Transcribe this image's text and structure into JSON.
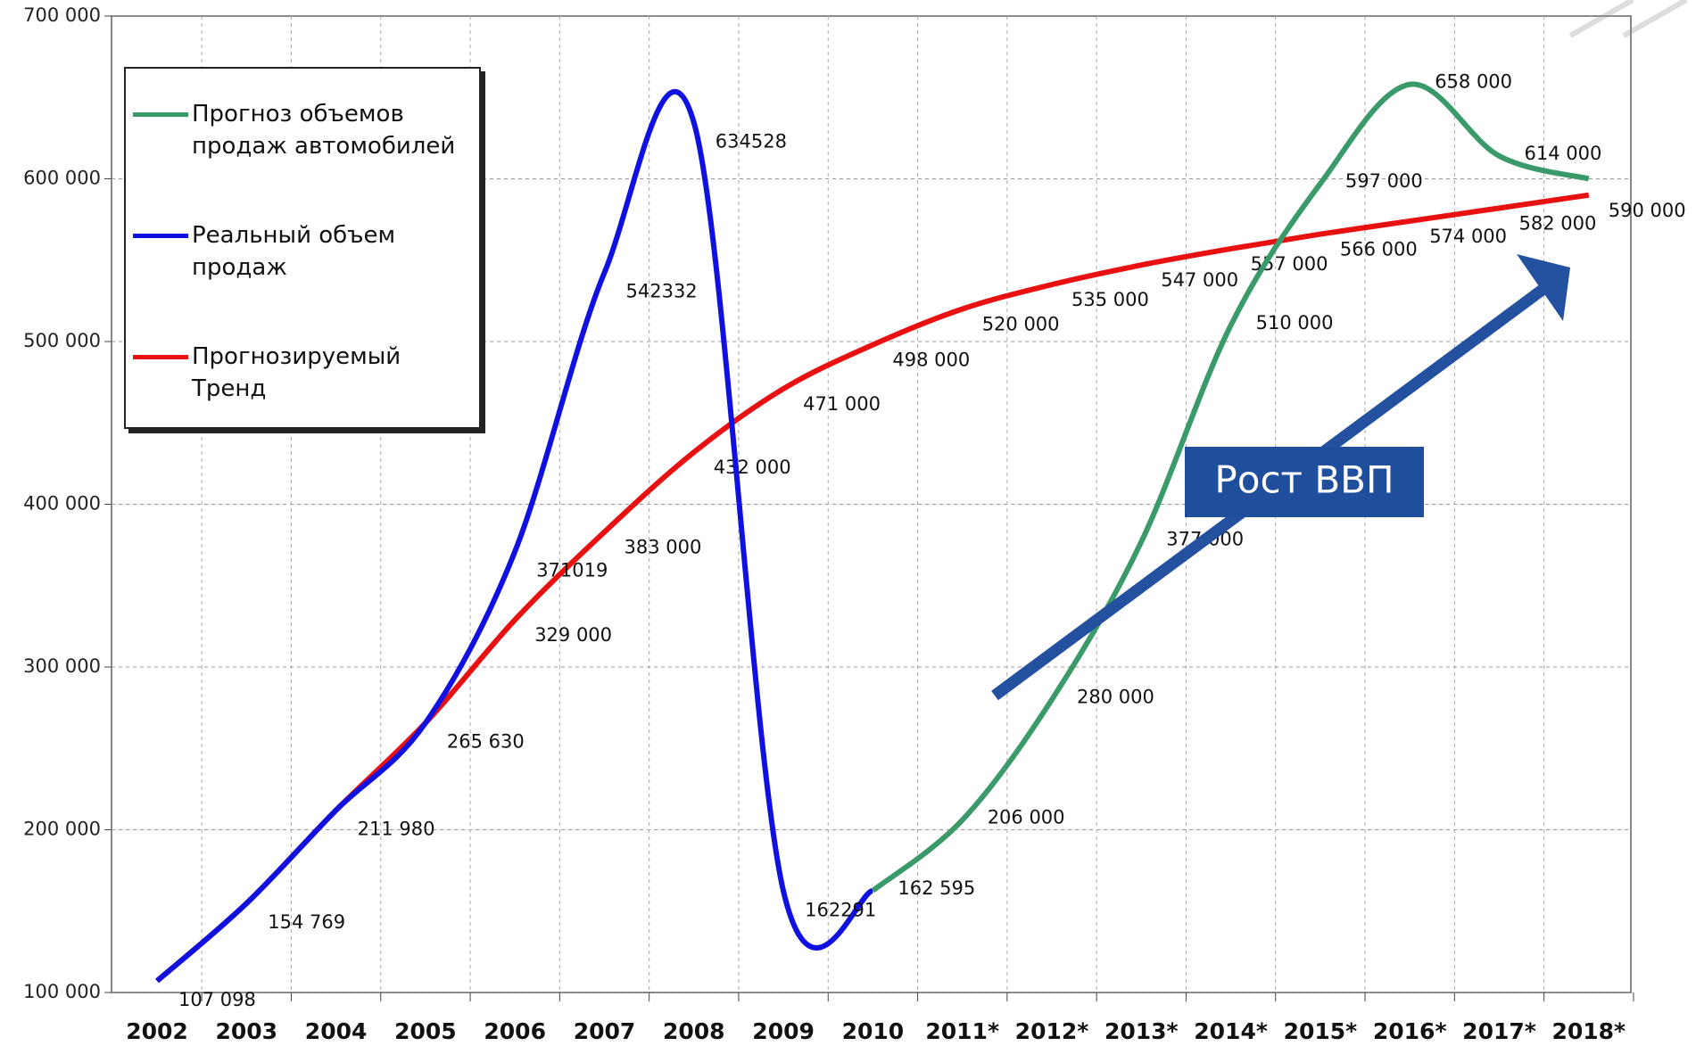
{
  "chart_data": {
    "type": "line",
    "categories": [
      "2002",
      "2003",
      "2004",
      "2005",
      "2006",
      "2007",
      "2008",
      "2009",
      "2010",
      "2011*",
      "2012*",
      "2013*",
      "2014*",
      "2015*",
      "2016*",
      "2017*",
      "2018*"
    ],
    "series": [
      {
        "name": "Прогноз объемов продаж автомобилей",
        "color": "#3a9a6a",
        "values": [
          null,
          null,
          null,
          null,
          null,
          null,
          null,
          null,
          162595,
          206000,
          280000,
          377000,
          510000,
          597000,
          658000,
          614000,
          600000
        ],
        "value_labels": [
          null,
          null,
          null,
          null,
          null,
          null,
          null,
          null,
          "162 595",
          "206 000",
          "280 000",
          "377 000",
          "510 000",
          "597 000",
          "658 000",
          "614 000",
          null
        ]
      },
      {
        "name": "Реальный объем продаж",
        "color": "#1010e0",
        "values": [
          107098,
          154769,
          211980,
          265630,
          371019,
          542332,
          634528,
          162291,
          162595,
          null,
          null,
          null,
          null,
          null,
          null,
          null,
          null
        ],
        "value_labels": [
          "107 098",
          "154 769",
          "211 980",
          "265 630",
          "371019",
          "542332",
          "634528",
          "162291",
          null,
          null,
          null,
          null,
          null,
          null,
          null,
          null,
          null
        ]
      },
      {
        "name": "Прогнозируемый Тренд",
        "color": "#e81010",
        "values": [
          107098,
          154769,
          211980,
          265630,
          329000,
          383000,
          432000,
          471000,
          498000,
          520000,
          535000,
          547000,
          557000,
          566000,
          574000,
          582000,
          590000
        ],
        "value_labels": [
          null,
          null,
          null,
          null,
          "329 000",
          "383 000",
          "432 000",
          "471 000",
          "498 000",
          "520 000",
          "535 000",
          "547 000",
          "557 000",
          "566 000",
          "574 000",
          "582 000",
          "590 000"
        ]
      }
    ],
    "ylim": [
      100000,
      700000
    ],
    "yticks": [
      {
        "value": 100000,
        "label": "100 000"
      },
      {
        "value": 200000,
        "label": "200 000"
      },
      {
        "value": 300000,
        "label": "300 000"
      },
      {
        "value": 400000,
        "label": "400 000"
      },
      {
        "value": 500000,
        "label": "500 000"
      },
      {
        "value": 600000,
        "label": "600 000"
      },
      {
        "value": 700000,
        "label": "700 000"
      }
    ],
    "grid": true,
    "annotation": "Рост ВВП"
  }
}
